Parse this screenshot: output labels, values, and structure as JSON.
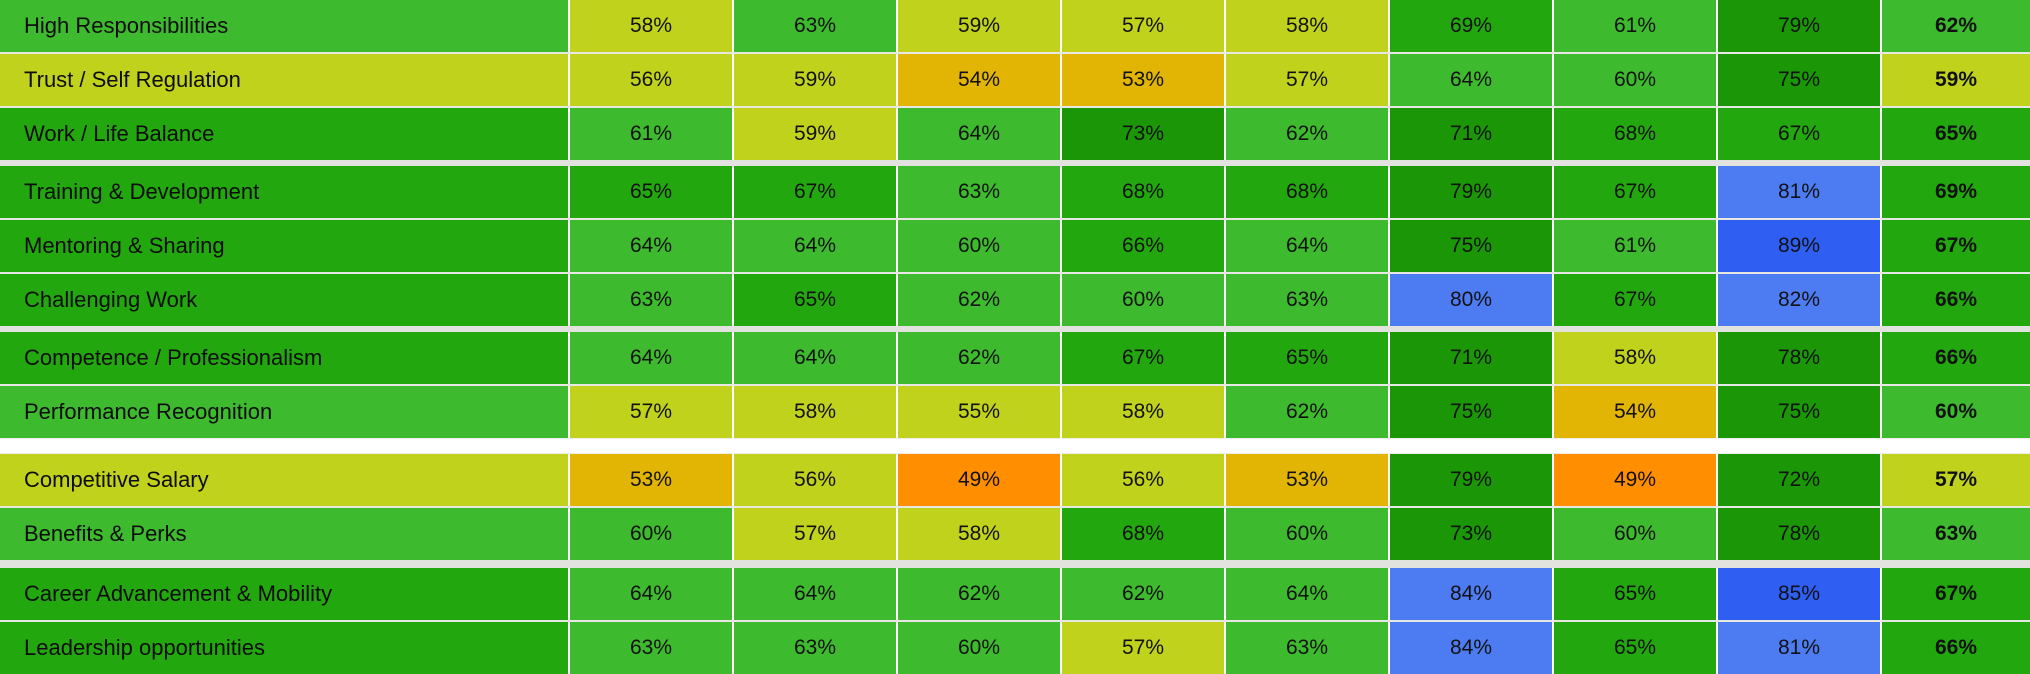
{
  "chart_data": {
    "type": "heatmap",
    "unit": "%",
    "value_columns_count": 9,
    "last_column_is_overall_bold": true,
    "sections": [
      {
        "rows": [
          {
            "label": "High Responsibilities",
            "values": [
              58,
              63,
              59,
              57,
              58,
              69,
              61,
              79,
              62
            ]
          },
          {
            "label": "Trust / Self Regulation",
            "values": [
              56,
              59,
              54,
              53,
              57,
              64,
              60,
              75,
              59
            ]
          },
          {
            "label": "Work / Life Balance",
            "values": [
              61,
              59,
              64,
              73,
              62,
              71,
              68,
              67,
              65
            ]
          }
        ]
      },
      {
        "rows": [
          {
            "label": "Training & Development",
            "values": [
              65,
              67,
              63,
              68,
              68,
              79,
              67,
              81,
              69
            ]
          },
          {
            "label": "Mentoring & Sharing",
            "values": [
              64,
              64,
              60,
              66,
              64,
              75,
              61,
              89,
              67
            ]
          },
          {
            "label": "Challenging Work",
            "values": [
              63,
              65,
              62,
              60,
              63,
              80,
              67,
              82,
              66
            ]
          }
        ]
      },
      {
        "rows": [
          {
            "label": "Competence / Professionalism",
            "values": [
              64,
              64,
              62,
              67,
              65,
              71,
              58,
              78,
              66
            ]
          },
          {
            "label": "Performance Recognition",
            "values": [
              57,
              58,
              55,
              58,
              62,
              75,
              54,
              75,
              60
            ]
          }
        ]
      },
      {
        "rows": [
          {
            "label": "Competitive Salary",
            "values": [
              53,
              56,
              49,
              56,
              53,
              79,
              49,
              72,
              57
            ]
          },
          {
            "label": "Benefits & Perks",
            "values": [
              60,
              57,
              58,
              68,
              60,
              73,
              60,
              78,
              63
            ]
          }
        ]
      },
      {
        "rows": [
          {
            "label": "Career Advancement & Mobility",
            "values": [
              64,
              64,
              62,
              62,
              64,
              84,
              65,
              85,
              67
            ]
          },
          {
            "label": "Leadership opportunities",
            "values": [
              63,
              63,
              60,
              57,
              63,
              84,
              65,
              81,
              66
            ]
          }
        ]
      }
    ],
    "color_scale": [
      {
        "min": 0,
        "max": 52,
        "color": "#ff8e00"
      },
      {
        "min": 53,
        "max": 54,
        "color": "#e2b504"
      },
      {
        "min": 55,
        "max": 59,
        "color": "#c1d21c"
      },
      {
        "min": 60,
        "max": 64,
        "color": "#3eba2e"
      },
      {
        "min": 65,
        "max": 69,
        "color": "#23a70e"
      },
      {
        "min": 70,
        "max": 79,
        "color": "#1a9607"
      },
      {
        "min": 80,
        "max": 84,
        "color": "#4d7cf2"
      },
      {
        "min": 85,
        "max": 100,
        "color": "#2e5ef2"
      }
    ],
    "label_color_rule": "row label background uses the color of the row overall (last column) value",
    "separator_style": {
      "row_gap_color": "#e7e7e3",
      "section_gap_color": "#e2e2de",
      "major_gap_color": "#ffffff",
      "cell_border_color": "#ffffff"
    },
    "gap_after_section": [
      "section",
      "section",
      "major",
      "section-wide",
      "none"
    ]
  }
}
